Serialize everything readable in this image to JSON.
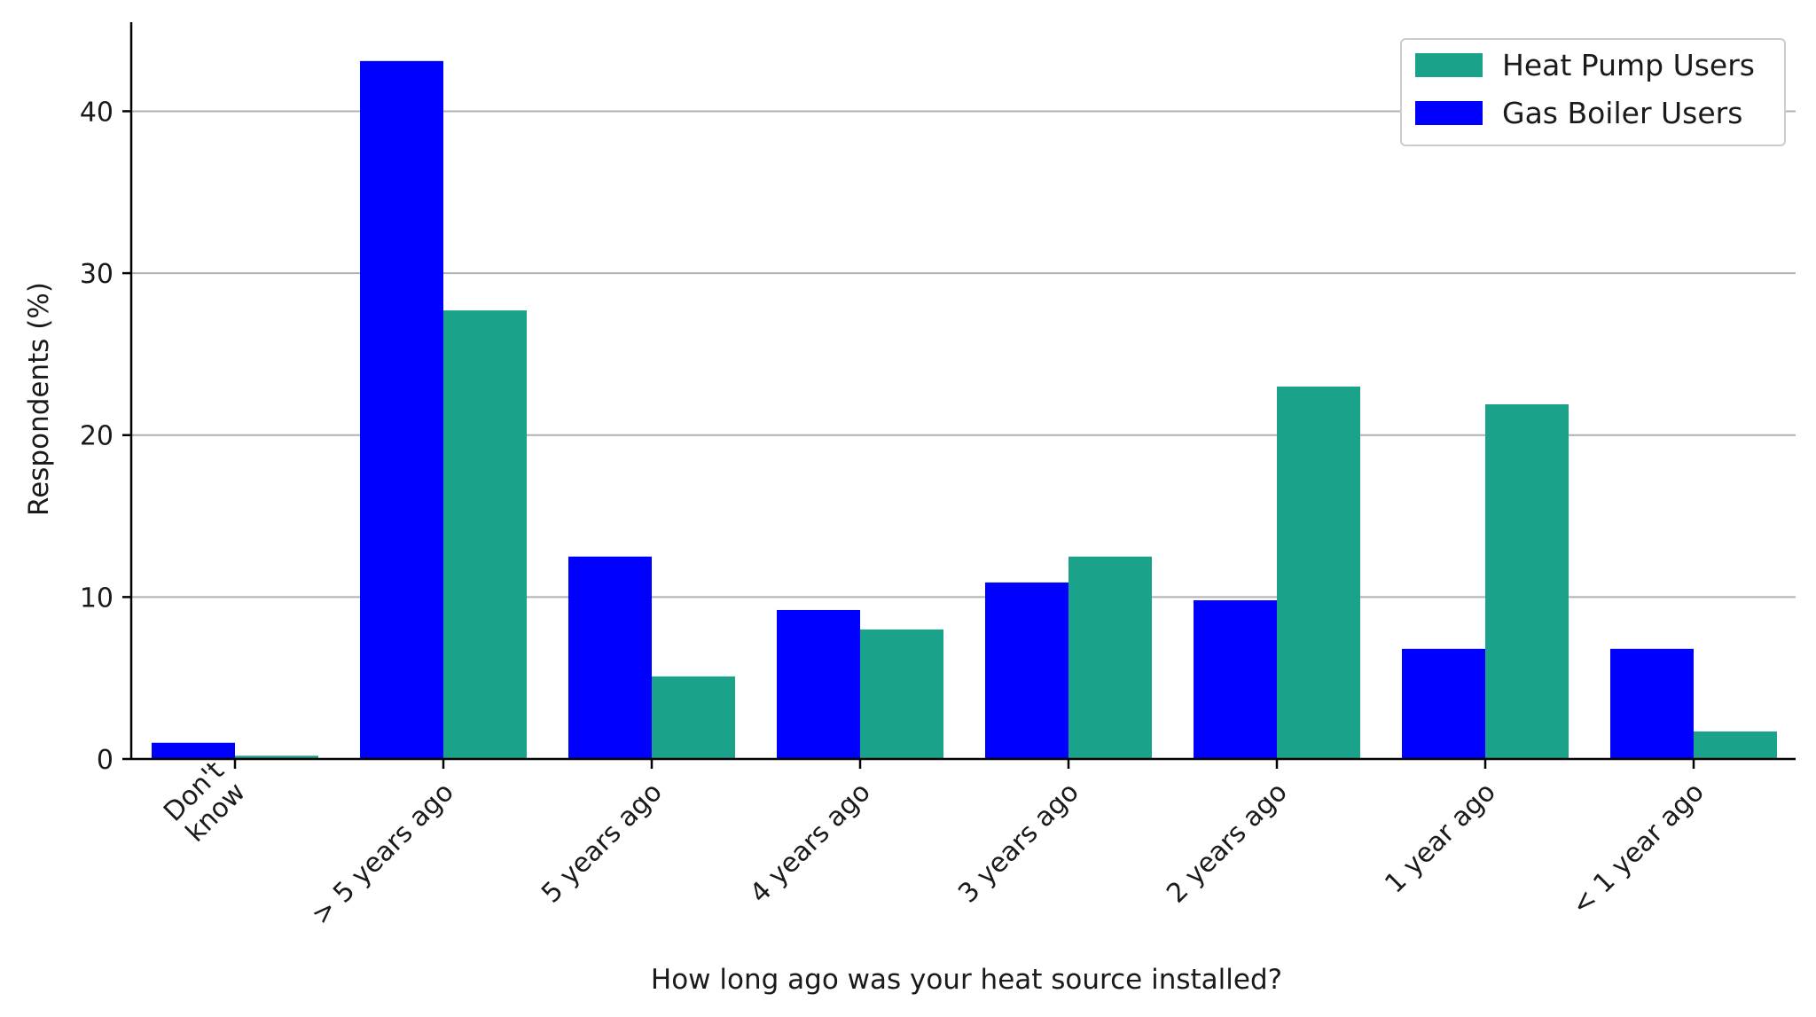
{
  "chart_data": {
    "type": "bar",
    "title": "",
    "xlabel": "How long ago was your heat source installed?",
    "ylabel": "Respondents (%)",
    "ylim": [
      0,
      45.5
    ],
    "yticks": [
      0,
      10,
      20,
      30,
      40
    ],
    "grid": "horizontal",
    "legend_position": "top-right",
    "categories": [
      [
        "Don't",
        "know"
      ],
      [
        "> 5 years ago"
      ],
      [
        "5 years ago"
      ],
      [
        "4 years ago"
      ],
      [
        "3 years ago"
      ],
      [
        "2 years ago"
      ],
      [
        "1 year ago"
      ],
      [
        "< 1 year ago"
      ]
    ],
    "series": [
      {
        "name": "Gas Boiler Users",
        "color": "#0000ff",
        "values": [
          1.0,
          43.1,
          12.5,
          9.2,
          10.9,
          9.8,
          6.8,
          6.8
        ]
      },
      {
        "name": "Heat Pump Users",
        "color": "#1aa38a",
        "values": [
          0.2,
          27.7,
          5.1,
          8.0,
          12.5,
          23.0,
          21.9,
          1.7
        ]
      }
    ],
    "legend_order": [
      1,
      0
    ]
  }
}
